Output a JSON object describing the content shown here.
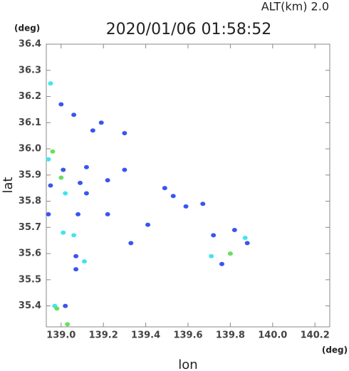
{
  "chart_data": {
    "type": "scatter",
    "title": "2020/01/06 01:58:52",
    "subtitle": "ALT(km) 2.0",
    "y_unit": "(deg)",
    "x_unit": "(deg)",
    "x_label": "lon",
    "y_label": "lat",
    "xlim": [
      138.93,
      140.27
    ],
    "ylim": [
      35.32,
      36.4
    ],
    "xticks": [
      {
        "value": 139,
        "label": "139.0"
      },
      139.2,
      139.4,
      139.6,
      139.8,
      {
        "value": 140,
        "label": "140.0"
      },
      140.2
    ],
    "yticks": [
      35.4,
      35.5,
      35.6,
      35.7,
      35.8,
      35.9,
      {
        "value": 36,
        "label": "36.0"
      },
      36.1,
      36.2,
      36.3,
      36.4
    ],
    "series": [
      {
        "color": "#3a55f0",
        "x": [
          139.0,
          139.06,
          139.19,
          139.15,
          139.3,
          139.12,
          139.01,
          138.95,
          139.09,
          139.12,
          139.22,
          139.3,
          139.49,
          139.53,
          139.59,
          139.67,
          139.41,
          139.22,
          139.08,
          139.33,
          139.72,
          139.82,
          139.88,
          139.76,
          139.07,
          139.07,
          139.02,
          138.94
        ],
        "values": [
          36.17,
          36.13,
          36.1,
          36.07,
          36.06,
          35.93,
          35.92,
          35.86,
          35.87,
          35.83,
          35.88,
          35.92,
          35.85,
          35.82,
          35.78,
          35.79,
          35.71,
          35.75,
          35.75,
          35.64,
          35.67,
          35.69,
          35.64,
          35.56,
          35.59,
          35.54,
          35.4,
          35.75
        ]
      },
      {
        "color": "#40e4f0",
        "x": [
          138.95,
          138.94,
          139.02,
          139.01,
          139.06,
          139.11,
          138.97,
          139.71,
          139.87
        ],
        "values": [
          36.25,
          35.96,
          35.83,
          35.68,
          35.67,
          35.57,
          35.4,
          35.59,
          35.66
        ]
      },
      {
        "color": "#66e060",
        "x": [
          138.96,
          139.0,
          138.98,
          139.03,
          139.8
        ],
        "values": [
          35.99,
          35.89,
          35.39,
          35.33,
          35.6
        ]
      }
    ]
  }
}
